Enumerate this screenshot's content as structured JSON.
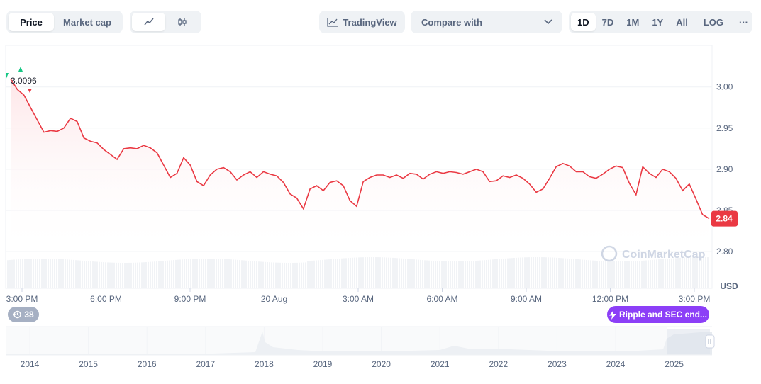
{
  "toolbar": {
    "price_tab": "Price",
    "marketcap_tab": "Market cap",
    "line_icon": "line-chart-icon",
    "candle_icon": "candlestick-icon",
    "tradingview_label": "TradingView",
    "compare_label": "Compare with",
    "ranges": [
      "1D",
      "7D",
      "1M",
      "1Y",
      "All"
    ],
    "active_range": "1D",
    "log_label": "LOG",
    "more_label": "···"
  },
  "chart_data": {
    "type": "line",
    "series": [
      {
        "values": [
          3.0096,
          2.997,
          2.99,
          2.975,
          2.96,
          2.945,
          2.947,
          2.946,
          2.95,
          2.962,
          2.958,
          2.938,
          2.934,
          2.932,
          2.924,
          2.918,
          2.912,
          2.925,
          2.926,
          2.925,
          2.929,
          2.926,
          2.92,
          2.905,
          2.89,
          2.895,
          2.914,
          2.905,
          2.885,
          2.88,
          2.893,
          2.9,
          2.902,
          2.897,
          2.887,
          2.893,
          2.897,
          2.89,
          2.897,
          2.894,
          2.892,
          2.884,
          2.87,
          2.865,
          2.852,
          2.876,
          2.88,
          2.874,
          2.884,
          2.886,
          2.88,
          2.862,
          2.855,
          2.885,
          2.89,
          2.893,
          2.893,
          2.89,
          2.893,
          2.889,
          2.895,
          2.894,
          2.888,
          2.894,
          2.897,
          2.895,
          2.897,
          2.896,
          2.894,
          2.897,
          2.9,
          2.897,
          2.885,
          2.886,
          2.892,
          2.89,
          2.893,
          2.889,
          2.882,
          2.872,
          2.876,
          2.889,
          2.903,
          2.907,
          2.904,
          2.897,
          2.897,
          2.891,
          2.889,
          2.894,
          2.9,
          2.904,
          2.902,
          2.883,
          2.869,
          2.903,
          2.895,
          2.89,
          2.9,
          2.897,
          2.889,
          2.874,
          2.882,
          2.864,
          2.845,
          2.84
        ]
      }
    ],
    "y_ticks": [
      3.0,
      2.95,
      2.9,
      2.85,
      2.8
    ],
    "y_tick_labels": [
      "3.00",
      "2.95",
      "2.90",
      "2.85",
      "2.80"
    ],
    "ylim": [
      2.78,
      3.05
    ],
    "x_tick_labels": [
      "3:00 PM",
      "6:00 PM",
      "9:00 PM",
      "20 Aug",
      "3:00 AM",
      "6:00 AM",
      "9:00 AM",
      "12:00 PM",
      "3:00 PM"
    ],
    "start_value_label": "3.0096",
    "current_value_label": "2.84",
    "unit_label": "USD",
    "watermark": "CoinMarketCap",
    "colors": {
      "line": "#ea3943",
      "area_top": "#fde6e8",
      "grid": "#eff2f5",
      "axis_text": "#58667e",
      "up": "#16c784"
    }
  },
  "overview": {
    "years": [
      "2014",
      "2015",
      "2016",
      "2017",
      "2018",
      "2019",
      "2020",
      "2021",
      "2022",
      "2023",
      "2024",
      "2025"
    ]
  },
  "events": {
    "history_count": "38",
    "news_label": "Ripple and SEC end..."
  }
}
